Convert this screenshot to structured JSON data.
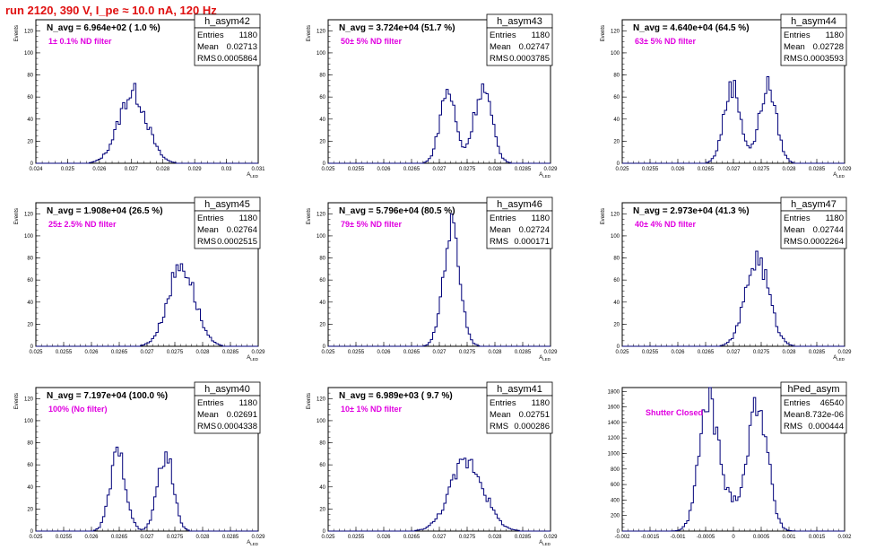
{
  "header": {
    "run_title": "run 2120,   390 V, I_pe ≈ 10.0 nA, 120 Hz"
  },
  "colors": {
    "title": "#e01010",
    "note": "#e000e0",
    "histogram": "#00007a"
  },
  "chart_data": [
    {
      "type": "bar",
      "name": "h_asym42",
      "navg": "N_avg = 6.964e+02 ( 1.0 %)",
      "note": "1± 0.1% ND filter",
      "stats": {
        "entries": "1180",
        "mean": "0.02713",
        "rms": "0.0005864"
      },
      "ylabel": "Events",
      "xlabel": "A_LED",
      "xlim": [
        0.024,
        0.031
      ],
      "ylim": [
        0,
        130
      ],
      "xticks": [
        0.024,
        0.025,
        0.026,
        0.027,
        0.028,
        0.029,
        0.03,
        0.031
      ],
      "xtick_labels": [
        "0.024",
        "0.025",
        "0.026",
        "0.027",
        "0.028",
        "0.029",
        "0.03",
        "0.031"
      ],
      "yticks": [
        0,
        20,
        40,
        60,
        80,
        100,
        120
      ],
      "peaks": [
        {
          "mu": 0.02705,
          "sigma": 0.00044,
          "amp": 64
        }
      ]
    },
    {
      "type": "bar",
      "name": "h_asym43",
      "navg": "N_avg = 3.724e+04 (51.7 %)",
      "note": "50± 5% ND filter",
      "stats": {
        "entries": "1180",
        "mean": "0.02747",
        "rms": "0.0003785"
      },
      "ylabel": "Events",
      "xlabel": "A_LED",
      "xlim": [
        0.025,
        0.029
      ],
      "ylim": [
        0,
        130
      ],
      "xticks": [
        0.025,
        0.0255,
        0.026,
        0.0265,
        0.027,
        0.0275,
        0.028,
        0.0285,
        0.029
      ],
      "xtick_labels": [
        "0.025",
        "0.0255",
        "0.026",
        "0.0265",
        "0.027",
        "0.0275",
        "0.028",
        "0.0285",
        "0.029"
      ],
      "yticks": [
        0,
        20,
        40,
        60,
        80,
        100,
        120
      ],
      "peaks": [
        {
          "mu": 0.02715,
          "sigma": 0.00014,
          "amp": 66
        },
        {
          "mu": 0.02778,
          "sigma": 0.00016,
          "amp": 68
        }
      ]
    },
    {
      "type": "bar",
      "name": "h_asym44",
      "navg": "N_avg = 4.640e+04 (64.5 %)",
      "note": "63± 5% ND filter",
      "stats": {
        "entries": "1180",
        "mean": "0.02728",
        "rms": "0.0003593"
      },
      "ylabel": "Events",
      "xlabel": "A_LED",
      "xlim": [
        0.025,
        0.029
      ],
      "ylim": [
        0,
        130
      ],
      "xticks": [
        0.025,
        0.0255,
        0.026,
        0.0265,
        0.027,
        0.0275,
        0.028,
        0.0285,
        0.029
      ],
      "xtick_labels": [
        "0.025",
        "0.0255",
        "0.026",
        "0.0265",
        "0.027",
        "0.0275",
        "0.028",
        "0.0285",
        "0.029"
      ],
      "yticks": [
        0,
        20,
        40,
        60,
        80,
        100,
        120
      ],
      "peaks": [
        {
          "mu": 0.02698,
          "sigma": 0.00015,
          "amp": 70
        },
        {
          "mu": 0.02762,
          "sigma": 0.00015,
          "amp": 70
        }
      ]
    },
    {
      "type": "bar",
      "name": "h_asym45",
      "navg": "N_avg = 1.908e+04 (26.5 %)",
      "note": "25± 2.5% ND filter",
      "stats": {
        "entries": "1180",
        "mean": "0.02764",
        "rms": "0.0002515"
      },
      "ylabel": "Events",
      "xlabel": "A_LED",
      "xlim": [
        0.025,
        0.029
      ],
      "ylim": [
        0,
        130
      ],
      "xticks": [
        0.025,
        0.0255,
        0.026,
        0.0265,
        0.027,
        0.0275,
        0.028,
        0.0285,
        0.029
      ],
      "xtick_labels": [
        "0.025",
        "0.0255",
        "0.026",
        "0.0265",
        "0.027",
        "0.0275",
        "0.028",
        "0.0285",
        "0.029"
      ],
      "yticks": [
        0,
        20,
        40,
        60,
        80,
        100,
        120
      ],
      "peaks": [
        {
          "mu": 0.02762,
          "sigma": 0.00024,
          "amp": 74
        }
      ]
    },
    {
      "type": "bar",
      "name": "h_asym46",
      "navg": "N_avg = 5.796e+04 (80.5 %)",
      "note": "79± 5% ND filter",
      "stats": {
        "entries": "1180",
        "mean": "0.02724",
        "rms": "0.000171"
      },
      "ylabel": "Events",
      "xlabel": "A_LED",
      "xlim": [
        0.025,
        0.029
      ],
      "ylim": [
        0,
        130
      ],
      "xticks": [
        0.025,
        0.0255,
        0.026,
        0.0265,
        0.027,
        0.0275,
        0.028,
        0.0285,
        0.029
      ],
      "xtick_labels": [
        "0.025",
        "0.0255",
        "0.026",
        "0.0265",
        "0.027",
        "0.0275",
        "0.028",
        "0.0285",
        "0.029"
      ],
      "yticks": [
        0,
        20,
        40,
        60,
        80,
        100,
        120
      ],
      "peaks": [
        {
          "mu": 0.02722,
          "sigma": 0.00015,
          "amp": 108
        }
      ]
    },
    {
      "type": "bar",
      "name": "h_asym47",
      "navg": "N_avg = 2.973e+04 (41.3 %)",
      "note": "40± 4% ND filter",
      "stats": {
        "entries": "1180",
        "mean": "0.02744",
        "rms": "0.0002264"
      },
      "ylabel": "Events",
      "xlabel": "A_LED",
      "xlim": [
        0.025,
        0.029
      ],
      "ylim": [
        0,
        130
      ],
      "xticks": [
        0.025,
        0.0255,
        0.026,
        0.0265,
        0.027,
        0.0275,
        0.028,
        0.0285,
        0.029
      ],
      "xtick_labels": [
        "0.025",
        "0.0255",
        "0.026",
        "0.0265",
        "0.027",
        "0.0275",
        "0.028",
        "0.0285",
        "0.029"
      ],
      "yticks": [
        0,
        20,
        40,
        60,
        80,
        100,
        120
      ],
      "peaks": [
        {
          "mu": 0.02743,
          "sigma": 0.00021,
          "amp": 80
        }
      ]
    },
    {
      "type": "bar",
      "name": "h_asym40",
      "navg": "N_avg = 7.197e+04 (100.0 %)",
      "note": "100% (No filter)",
      "stats": {
        "entries": "1180",
        "mean": "0.02691",
        "rms": "0.0004338"
      },
      "ylabel": "Events",
      "xlabel": "A_LED",
      "xlim": [
        0.025,
        0.029
      ],
      "ylim": [
        0,
        130
      ],
      "xticks": [
        0.025,
        0.0255,
        0.026,
        0.0265,
        0.027,
        0.0275,
        0.028,
        0.0285,
        0.029
      ],
      "xtick_labels": [
        "0.025",
        "0.0255",
        "0.026",
        "0.0265",
        "0.027",
        "0.0275",
        "0.028",
        "0.0285",
        "0.029"
      ],
      "yticks": [
        0,
        20,
        40,
        60,
        80,
        100,
        120
      ],
      "peaks": [
        {
          "mu": 0.02648,
          "sigma": 0.00014,
          "amp": 70
        },
        {
          "mu": 0.02733,
          "sigma": 0.00014,
          "amp": 70
        }
      ]
    },
    {
      "type": "bar",
      "name": "h_asym41",
      "navg": "N_avg = 6.989e+03 ( 9.7 %)",
      "note": "10± 1% ND filter",
      "stats": {
        "entries": "1180",
        "mean": "0.02751",
        "rms": "0.000286"
      },
      "ylabel": "Events",
      "xlabel": "A_LED",
      "xlim": [
        0.025,
        0.029
      ],
      "ylim": [
        0,
        130
      ],
      "xticks": [
        0.025,
        0.0255,
        0.026,
        0.0265,
        0.027,
        0.0275,
        0.028,
        0.0285,
        0.029
      ],
      "xtick_labels": [
        "0.025",
        "0.0255",
        "0.026",
        "0.0265",
        "0.027",
        "0.0275",
        "0.028",
        "0.0285",
        "0.029"
      ],
      "yticks": [
        0,
        20,
        40,
        60,
        80,
        100,
        120
      ],
      "peaks": [
        {
          "mu": 0.0275,
          "sigma": 0.0003,
          "amp": 64
        }
      ]
    },
    {
      "type": "bar",
      "name": "hPed_asym",
      "navg": "",
      "note": "Shutter Closed",
      "stats": {
        "entries": "46540",
        "mean": "8.732e-06",
        "rms": "0.000444"
      },
      "ylabel": "",
      "xlabel": "",
      "xlim": [
        -0.002,
        0.002
      ],
      "ylim": [
        0,
        1850
      ],
      "xticks": [
        -0.002,
        -0.0015,
        -0.001,
        -0.0005,
        0,
        0.0005,
        0.001,
        0.0015,
        0.002
      ],
      "xtick_labels": [
        "-0.002",
        "-0.0015",
        "-0.001",
        "-0.0005",
        "0",
        "0.0005",
        "0.001",
        "0.0015",
        "0.002"
      ],
      "yticks": [
        0,
        200,
        400,
        600,
        800,
        1000,
        1200,
        1400,
        1600,
        1800
      ],
      "peaks": [
        {
          "mu": -0.00045,
          "sigma": 0.00017,
          "amp": 1620
        },
        {
          "mu": 0.00045,
          "sigma": 0.00017,
          "amp": 1620
        },
        {
          "mu": 0.0,
          "sigma": 0.00025,
          "amp": 330
        }
      ]
    }
  ]
}
